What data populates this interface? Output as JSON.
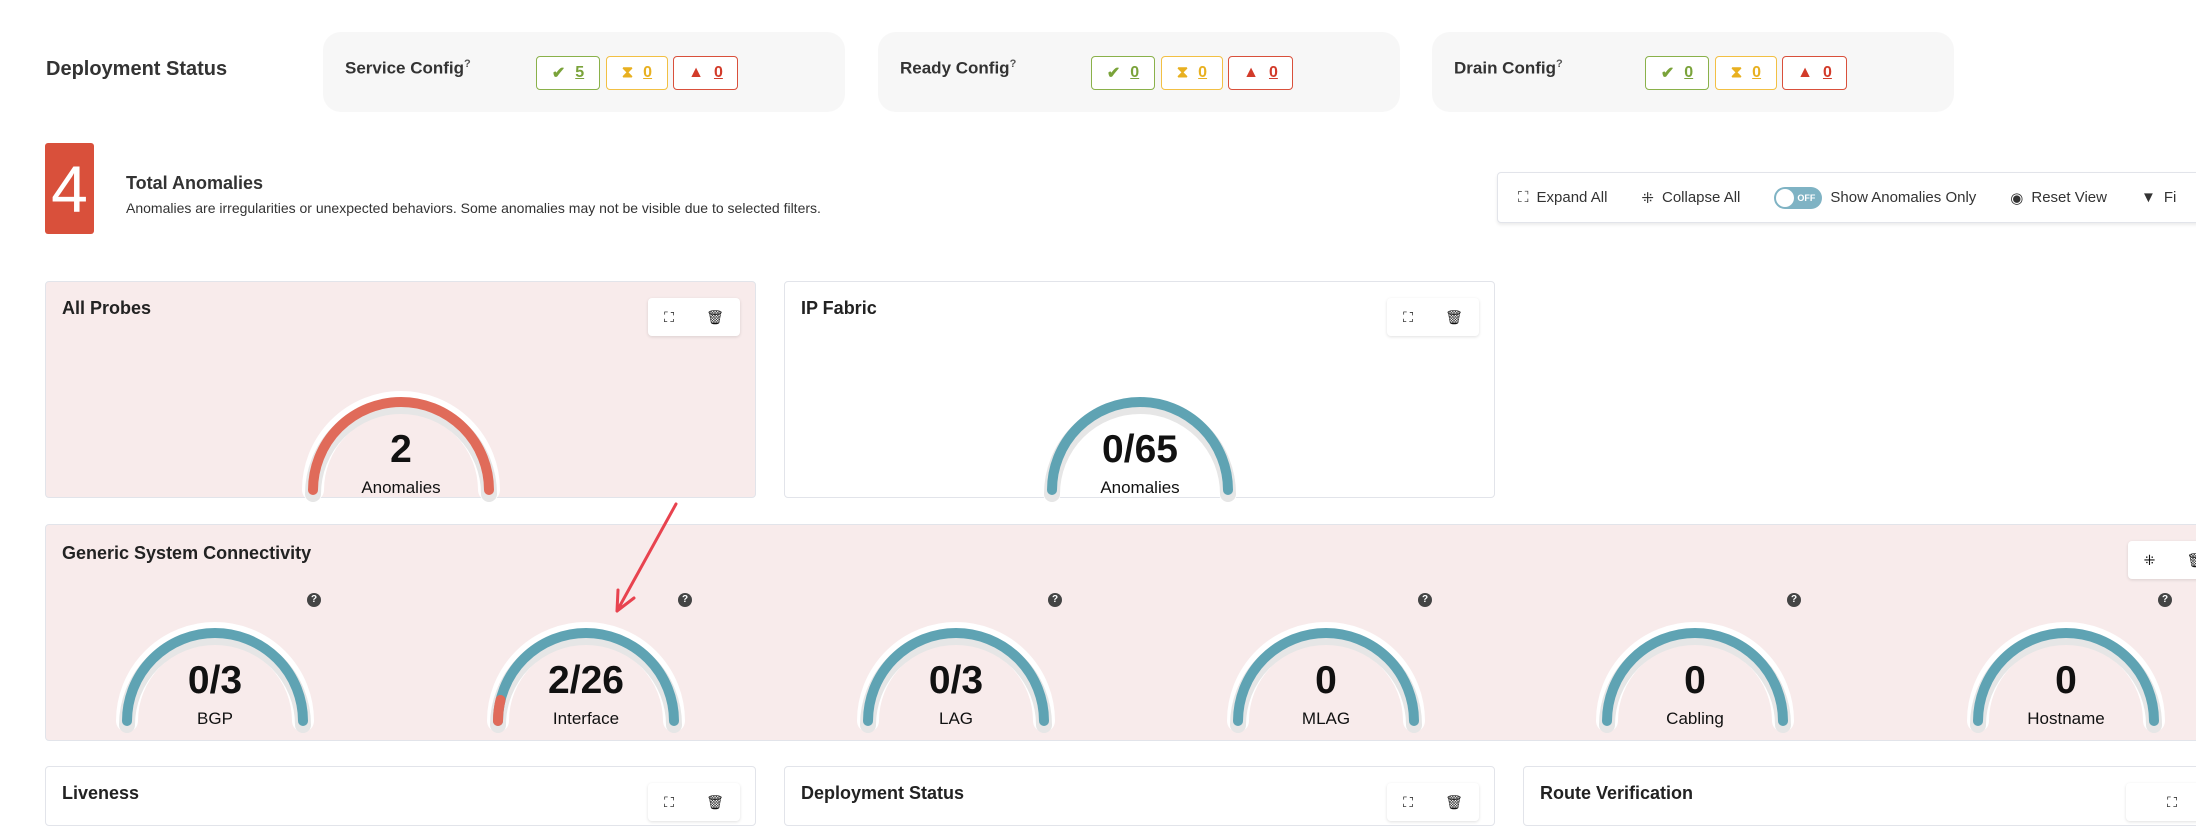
{
  "deployment": {
    "label": "Deployment Status",
    "configs": [
      {
        "title": "Service Config",
        "ok": "5",
        "pending": "0",
        "error": "0"
      },
      {
        "title": "Ready Config",
        "ok": "0",
        "pending": "0",
        "error": "0"
      },
      {
        "title": "Drain Config",
        "ok": "0",
        "pending": "0",
        "error": "0"
      }
    ],
    "help": "?"
  },
  "anomalies": {
    "count": "4",
    "title": "Total Anomalies",
    "description": "Anomalies are irregularities or unexpected behaviors. Some anomalies may not be visible due to selected filters."
  },
  "toolbar": {
    "expand_all": "Expand All",
    "collapse_all": "Collapse All",
    "toggle_state": "OFF",
    "show_anomalies_only": "Show Anomalies Only",
    "reset_view": "Reset View",
    "filter": "Fi"
  },
  "colors": {
    "ok": "#7aa33a",
    "pending": "#e8b020",
    "error": "#d23b2a",
    "gauge_ok": "#5fa3b3",
    "gauge_anomaly": "#e06b5a",
    "anomaly_card_bg": "#f8ebeb"
  },
  "cards": {
    "all_probes": {
      "title": "All Probes",
      "value": "2",
      "label": "Anomalies",
      "anomalies": 2,
      "total": 2
    },
    "ip_fabric": {
      "title": "IP Fabric",
      "value": "0/65",
      "label": "Anomalies",
      "anomalies": 0,
      "total": 65
    },
    "generic": {
      "title": "Generic System Connectivity",
      "gauges": [
        {
          "value": "0/3",
          "label": "BGP",
          "anomalies": 0,
          "total": 3
        },
        {
          "value": "2/26",
          "label": "Interface",
          "anomalies": 2,
          "total": 26
        },
        {
          "value": "0/3",
          "label": "LAG",
          "anomalies": 0,
          "total": 3
        },
        {
          "value": "0",
          "label": "MLAG",
          "anomalies": 0,
          "total": 0
        },
        {
          "value": "0",
          "label": "Cabling",
          "anomalies": 0,
          "total": 0
        },
        {
          "value": "0",
          "label": "Hostname",
          "anomalies": 0,
          "total": 0
        }
      ]
    },
    "bottom": [
      {
        "title": "Liveness"
      },
      {
        "title": "Deployment Status"
      },
      {
        "title": "Route Verification"
      }
    ]
  }
}
